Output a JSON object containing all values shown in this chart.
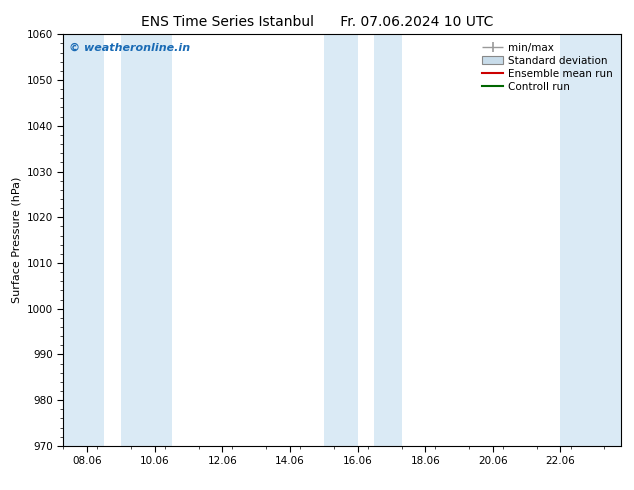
{
  "title_left": "ENS Time Series Istanbul",
  "title_right": "Fr. 07.06.2024 10 UTC",
  "ylabel": "Surface Pressure (hPa)",
  "ylim": [
    970,
    1060
  ],
  "yticks": [
    970,
    980,
    990,
    1000,
    1010,
    1020,
    1030,
    1040,
    1050,
    1060
  ],
  "xlim": [
    7.3,
    23.8
  ],
  "xtick_labels": [
    "08.06",
    "10.06",
    "12.06",
    "14.06",
    "16.06",
    "18.06",
    "20.06",
    "22.06"
  ],
  "xtick_positions": [
    8,
    10,
    12,
    14,
    16,
    18,
    20,
    22
  ],
  "shaded_bands": [
    {
      "x_start": 7.3,
      "x_end": 8.5
    },
    {
      "x_start": 9.0,
      "x_end": 10.5
    },
    {
      "x_start": 15.0,
      "x_end": 16.0
    },
    {
      "x_start": 16.5,
      "x_end": 17.3
    },
    {
      "x_start": 22.0,
      "x_end": 23.8
    }
  ],
  "band_color": "#daeaf5",
  "watermark_text": "© weatheronline.in",
  "watermark_color": "#1a6bb5",
  "legend_items": [
    {
      "label": "min/max",
      "color": "#999999"
    },
    {
      "label": "Standard deviation",
      "color": "#c8dcea"
    },
    {
      "label": "Ensemble mean run",
      "color": "#cc0000"
    },
    {
      "label": "Controll run",
      "color": "#006600"
    }
  ],
  "bg_color": "#ffffff",
  "font_size_title": 10,
  "font_size_axis": 8,
  "font_size_tick": 7.5,
  "font_size_legend": 7.5,
  "font_size_watermark": 8
}
